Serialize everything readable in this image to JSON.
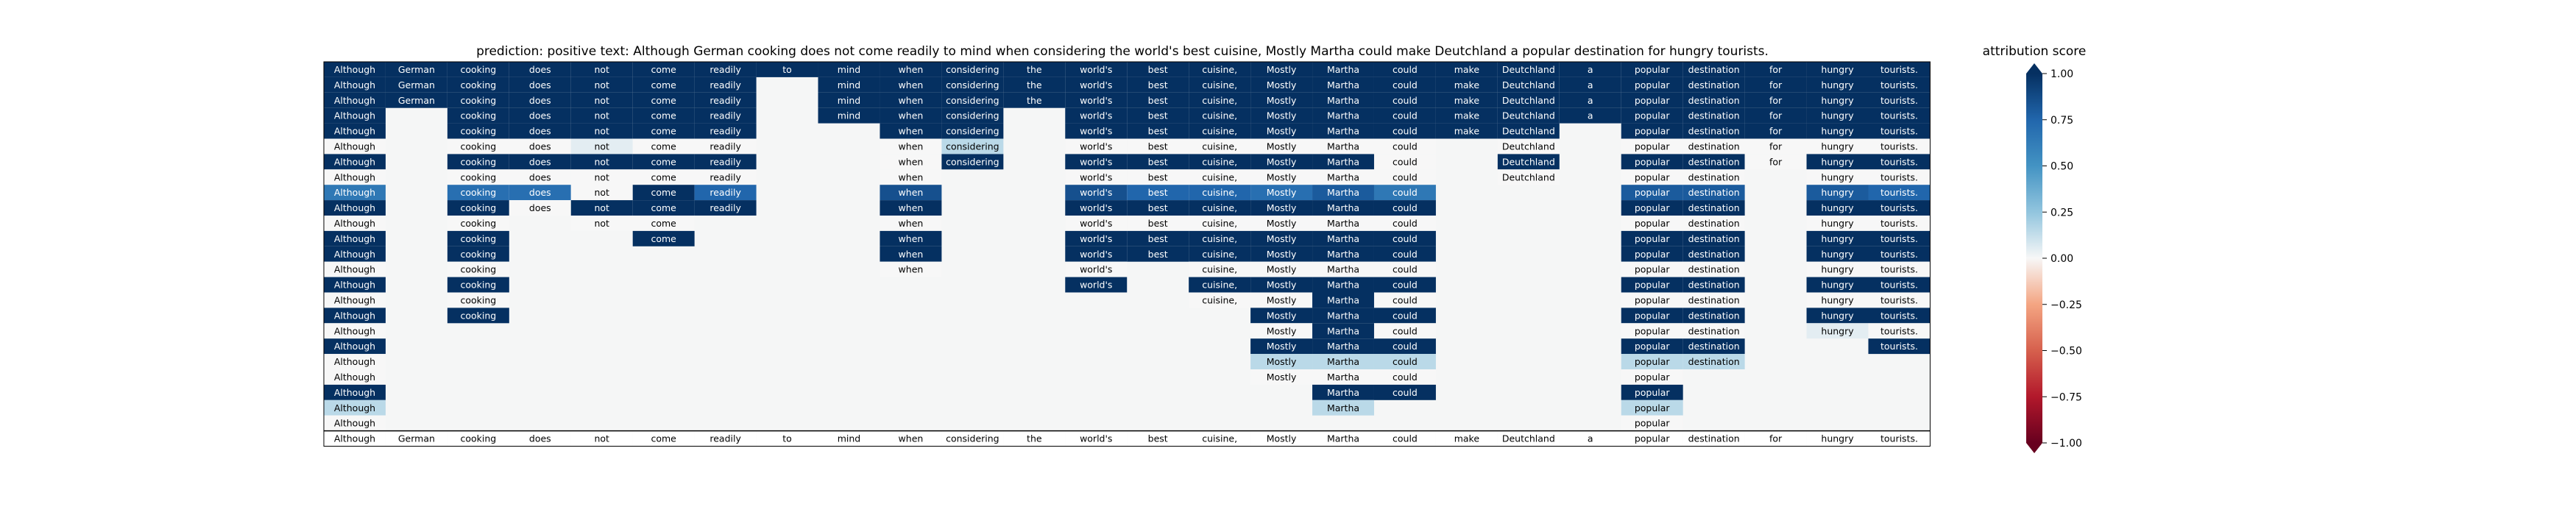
{
  "title": "prediction:  positive     text:  Although German cooking does not come readily to mind when considering the world's best cuisine, Mostly Martha could make Deutchland a popular destination for hungry tourists.",
  "colorbar": {
    "label": "attribution score",
    "ticks": [
      "1.00",
      "0.75",
      "0.50",
      "0.25",
      "0.00",
      "−0.25",
      "−0.50",
      "−0.75",
      "−1.00"
    ],
    "tick_values": [
      1.0,
      0.75,
      0.5,
      0.25,
      0.0,
      -0.25,
      -0.5,
      -0.75,
      -1.0
    ],
    "colors": {
      "pos": "#0f4c8a",
      "mid": "#f7f7f7",
      "neg": "#b2182b",
      "background": "#f5f6f6"
    }
  },
  "chart_data": {
    "type": "heatmap",
    "tokens": [
      "Although",
      "German",
      "cooking",
      "does",
      "not",
      "come",
      "readily",
      "to",
      "mind",
      "when",
      "considering",
      "the",
      "world's",
      "best",
      "cuisine,",
      "Mostly",
      "Martha",
      "could",
      "make",
      "Deutchland",
      "a",
      "popular",
      "destination",
      "for",
      "hungry",
      "tourists."
    ],
    "rows": [
      [
        "1.00",
        "1.00",
        "1.00",
        "1.00",
        "1.00",
        "1.00",
        "1.00",
        "1.00",
        "1.00",
        "1.00",
        "1.00",
        "1.00",
        "1.00",
        "1.00",
        "1.00",
        "1.00",
        "1.00",
        "1.00",
        "1.00",
        "1.00",
        "1.00",
        "1.00",
        "1.00",
        "1.00",
        "1.00",
        "1.00"
      ],
      [
        "1.00",
        "1.00",
        "1.00",
        "1.00",
        "1.00",
        "1.00",
        "1.00",
        "",
        "1.00",
        "1.00",
        "1.00",
        "1.00",
        "1.00",
        "1.00",
        "1.00",
        "1.00",
        "1.00",
        "1.00",
        "1.00",
        "1.00",
        "1.00",
        "1.00",
        "1.00",
        "1.00",
        "1.00",
        "1.00"
      ],
      [
        "1.00",
        "1.00",
        "1.00",
        "1.00",
        "1.00",
        "1.00",
        "1.00",
        "",
        "1.00",
        "1.00",
        "1.00",
        "1.00",
        "1.00",
        "1.00",
        "1.00",
        "1.00",
        "1.00",
        "1.00",
        "1.00",
        "1.00",
        "1.00",
        "1.00",
        "1.00",
        "1.00",
        "1.00",
        "1.00"
      ],
      [
        "1.00",
        "",
        "1.00",
        "1.00",
        "1.00",
        "1.00",
        "1.00",
        "",
        "1.00",
        "1.00",
        "1.00",
        "",
        "1.00",
        "1.00",
        "1.00",
        "1.00",
        "1.00",
        "1.00",
        "1.00",
        "1.00",
        "1.00",
        "1.00",
        "1.00",
        "1.00",
        "1.00",
        "1.00"
      ],
      [
        "1.00",
        "",
        "1.00",
        "1.00",
        "1.00",
        "1.00",
        "1.00",
        "",
        "",
        "1.00",
        "1.00",
        "",
        "1.00",
        "1.00",
        "1.00",
        "1.00",
        "1.00",
        "1.00",
        "1.00",
        "1.00",
        "",
        "1.00",
        "1.00",
        "1.00",
        "1.00",
        "1.00"
      ],
      [
        "0.00",
        "",
        "0.00",
        "0.00",
        "0.05",
        "0.00",
        "0.00",
        "",
        "",
        "0.00",
        "0.15",
        "",
        "0.00",
        "0.00",
        "0.00",
        "0.00",
        "0.00",
        "0.00",
        "",
        "0.00",
        "",
        "0.00",
        "0.00",
        "0.00",
        "0.00",
        "0.00"
      ],
      [
        "1.00",
        "",
        "1.00",
        "1.00",
        "1.00",
        "1.00",
        "1.00",
        "",
        "",
        "0.00",
        "1.00",
        "",
        "1.00",
        "1.00",
        "1.00",
        "1.00",
        "1.00",
        "0.00",
        "",
        "1.00",
        "",
        "1.00",
        "1.00",
        "0.00",
        "1.00",
        "1.00"
      ],
      [
        "0.00",
        "",
        "0.00",
        "0.00",
        "0.00",
        "0.00",
        "0.00",
        "",
        "",
        "0.00",
        "",
        "",
        "0.00",
        "0.00",
        "0.00",
        "0.00",
        "0.00",
        "0.00",
        "",
        "0.00",
        "",
        "0.00",
        "0.00",
        "",
        "0.00",
        "0.00"
      ],
      [
        "0.65",
        "",
        "0.70",
        "0.70",
        "0.00",
        "1.00",
        "0.75",
        "",
        "",
        "0.85",
        "",
        "",
        "0.85",
        "0.75",
        "0.75",
        "0.70",
        "0.80",
        "0.65",
        "",
        "",
        "",
        "0.80",
        "0.80",
        "",
        "0.80",
        "0.75"
      ],
      [
        "1.00",
        "",
        "1.00",
        "0.00",
        "1.00",
        "1.00",
        "1.00",
        "",
        "",
        "1.00",
        "",
        "",
        "1.00",
        "1.00",
        "1.00",
        "1.00",
        "1.00",
        "1.00",
        "",
        "",
        "",
        "1.00",
        "1.00",
        "",
        "1.00",
        "1.00"
      ],
      [
        "0.00",
        "",
        "0.00",
        "",
        "0.00",
        "0.00",
        "",
        "",
        "",
        "0.00",
        "",
        "",
        "0.00",
        "0.00",
        "0.00",
        "0.00",
        "0.00",
        "0.00",
        "",
        "",
        "",
        "0.00",
        "0.00",
        "",
        "0.00",
        "0.00"
      ],
      [
        "1.00",
        "",
        "1.00",
        "",
        "",
        "1.00",
        "",
        "",
        "",
        "1.00",
        "",
        "",
        "1.00",
        "1.00",
        "1.00",
        "1.00",
        "1.00",
        "1.00",
        "",
        "",
        "",
        "1.00",
        "1.00",
        "",
        "1.00",
        "1.00"
      ],
      [
        "1.00",
        "",
        "1.00",
        "",
        "",
        "",
        "",
        "",
        "",
        "1.00",
        "",
        "",
        "1.00",
        "1.00",
        "1.00",
        "1.00",
        "1.00",
        "1.00",
        "",
        "",
        "",
        "1.00",
        "1.00",
        "",
        "1.00",
        "1.00"
      ],
      [
        "0.00",
        "",
        "0.00",
        "",
        "",
        "",
        "",
        "",
        "",
        "0.00",
        "",
        "",
        "0.00",
        "",
        "0.00",
        "0.00",
        "0.00",
        "0.00",
        "",
        "",
        "",
        "0.00",
        "0.00",
        "",
        "0.00",
        "0.00"
      ],
      [
        "1.00",
        "",
        "1.00",
        "",
        "",
        "",
        "",
        "",
        "",
        "",
        "",
        "",
        "1.00",
        "",
        "1.00",
        "1.00",
        "1.00",
        "1.00",
        "",
        "",
        "",
        "1.00",
        "1.00",
        "",
        "1.00",
        "1.00"
      ],
      [
        "0.00",
        "",
        "0.00",
        "",
        "",
        "",
        "",
        "",
        "",
        "",
        "",
        "",
        "",
        "",
        "0.00",
        "0.00",
        "1.00",
        "0.00",
        "",
        "",
        "",
        "0.00",
        "0.00",
        "",
        "0.00",
        "0.00"
      ],
      [
        "1.00",
        "",
        "1.00",
        "",
        "",
        "",
        "",
        "",
        "",
        "",
        "",
        "",
        "",
        "",
        "",
        "1.00",
        "1.00",
        "1.00",
        "",
        "",
        "",
        "1.00",
        "1.00",
        "",
        "1.00",
        "1.00"
      ],
      [
        "0.00",
        "",
        "",
        "",
        "",
        "",
        "",
        "",
        "",
        "",
        "",
        "",
        "",
        "",
        "",
        "0.00",
        "1.00",
        "0.00",
        "",
        "",
        "",
        "0.00",
        "0.00",
        "",
        "0.05",
        "0.00"
      ],
      [
        "1.00",
        "",
        "",
        "",
        "",
        "",
        "",
        "",
        "",
        "",
        "",
        "",
        "",
        "",
        "",
        "1.00",
        "1.00",
        "1.00",
        "",
        "",
        "",
        "1.00",
        "1.00",
        "",
        "",
        "1.00"
      ],
      [
        "0.00",
        "",
        "",
        "",
        "",
        "",
        "",
        "",
        "",
        "",
        "",
        "",
        "",
        "",
        "",
        "0.15",
        "0.15",
        "0.15",
        "",
        "",
        "",
        "0.15",
        "0.15",
        "",
        "",
        ""
      ],
      [
        "0.00",
        "",
        "",
        "",
        "",
        "",
        "",
        "",
        "",
        "",
        "",
        "",
        "",
        "",
        "",
        "0.00",
        "0.00",
        "0.00",
        "",
        "",
        "",
        "0.00",
        "",
        "",
        "",
        ""
      ],
      [
        "1.00",
        "",
        "",
        "",
        "",
        "",
        "",
        "",
        "",
        "",
        "",
        "",
        "",
        "",
        "",
        "",
        "1.00",
        "1.00",
        "",
        "",
        "",
        "1.00",
        "",
        "",
        "",
        ""
      ],
      [
        "0.15",
        "",
        "",
        "",
        "",
        "",
        "",
        "",
        "",
        "",
        "",
        "",
        "",
        "",
        "",
        "",
        "0.15",
        "",
        "",
        "",
        "",
        "0.15",
        "",
        "",
        "",
        ""
      ],
      [
        "0.00",
        "",
        "",
        "",
        "",
        "",
        "",
        "",
        "",
        "",
        "",
        "",
        "",
        "",
        "",
        "",
        "",
        "",
        "",
        "",
        "",
        "0.00",
        "",
        "",
        "",
        ""
      ],
      [
        "0.00",
        "0.00",
        "0.00",
        "0.00",
        "0.00",
        "0.00",
        "0.00",
        "0.00",
        "0.00",
        "0.00",
        "0.00",
        "0.00",
        "0.00",
        "0.00",
        "0.00",
        "0.00",
        "0.00",
        "0.00",
        "0.00",
        "0.00",
        "0.00",
        "0.00",
        "0.00",
        "0.00",
        "0.00",
        "0.00"
      ]
    ],
    "vmin": -1.0,
    "vmax": 1.0,
    "colorbar_label": "attribution score"
  }
}
